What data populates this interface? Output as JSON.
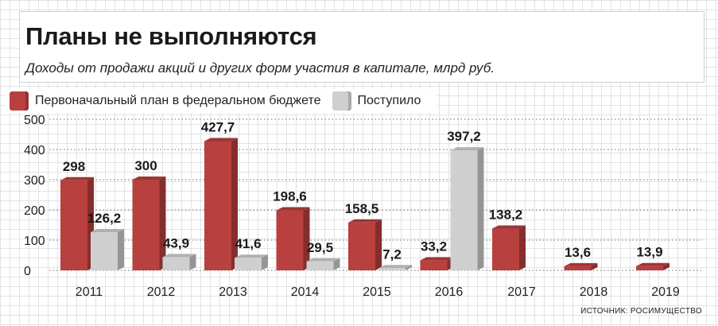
{
  "header": {
    "title": "Планы не выполняются",
    "subtitle": "Доходы от продажи акций и других форм участия в капитале, млрд руб."
  },
  "legend": {
    "items": [
      {
        "label": "Первоначальный план в федеральном бюджете",
        "color": "#b8403e"
      },
      {
        "label": "Поступило",
        "color": "#cfcfcf"
      }
    ]
  },
  "source": "ИСТОЧНИК: РОСИМУЩЕСТВО",
  "chart_data": {
    "type": "bar",
    "categories": [
      "2011",
      "2012",
      "2013",
      "2014",
      "2015",
      "2016",
      "2017",
      "2018",
      "2019"
    ],
    "series": [
      {
        "name": "Первоначальный план в федеральном бюджете",
        "color": "#b8403e",
        "values": [
          298,
          300,
          427.7,
          198.6,
          158.5,
          33.2,
          138.2,
          13.6,
          13.9
        ],
        "labels": [
          "298",
          "300",
          "427,7",
          "198,6",
          "158,5",
          "33,2",
          "138,2",
          "13,6",
          "13,9"
        ]
      },
      {
        "name": "Поступило",
        "color": "#cfcfcf",
        "values": [
          126.2,
          43.9,
          41.6,
          29.5,
          7.2,
          397.2,
          null,
          null,
          null
        ],
        "labels": [
          "126,2",
          "43,9",
          "41,6",
          "29,5",
          "7,2",
          "397,2",
          "",
          "",
          ""
        ]
      }
    ],
    "yticks": [
      "0",
      "100",
      "200",
      "300",
      "400",
      "500"
    ],
    "ylim": [
      0,
      500
    ],
    "grid": "horizontal dotted",
    "legend_position": "top-left"
  }
}
